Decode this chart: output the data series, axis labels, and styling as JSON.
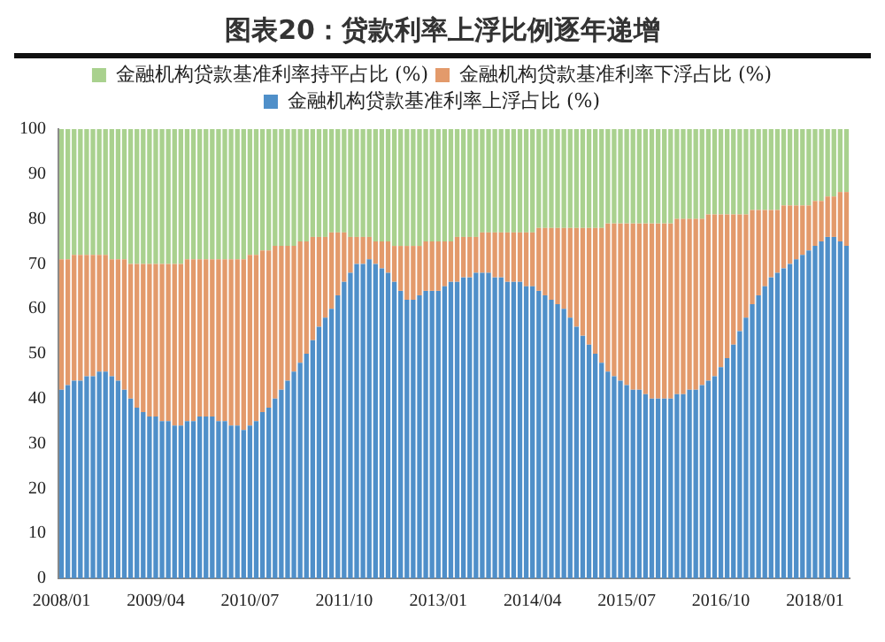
{
  "chart_data": {
    "type": "bar",
    "title": "图表20：贷款利率上浮比例逐年递增",
    "stacked": true,
    "legend": "top",
    "categories": [
      "2008/01",
      null,
      null,
      null,
      null,
      null,
      null,
      null,
      null,
      null,
      null,
      null,
      null,
      null,
      null,
      "2009/04",
      null,
      null,
      null,
      null,
      null,
      null,
      null,
      null,
      null,
      null,
      null,
      null,
      null,
      null,
      "2010/07",
      null,
      null,
      null,
      null,
      null,
      null,
      null,
      null,
      null,
      null,
      null,
      null,
      null,
      null,
      "2011/10",
      null,
      null,
      null,
      null,
      null,
      null,
      null,
      null,
      null,
      null,
      null,
      null,
      null,
      null,
      "2013/01",
      null,
      null,
      null,
      null,
      null,
      null,
      null,
      null,
      null,
      null,
      null,
      null,
      null,
      null,
      "2014/04",
      null,
      null,
      null,
      null,
      null,
      null,
      null,
      null,
      null,
      null,
      null,
      null,
      null,
      null,
      "2015/07",
      null,
      null,
      null,
      null,
      null,
      null,
      null,
      null,
      null,
      null,
      null,
      null,
      null,
      null,
      "2016/10",
      null,
      null,
      null,
      null,
      null,
      null,
      null,
      null,
      null,
      null,
      null,
      null,
      null,
      null,
      "2018/01",
      null,
      null,
      null,
      null,
      null
    ],
    "ylim": [
      0,
      100
    ],
    "yticks": [
      0,
      10,
      20,
      30,
      40,
      50,
      60,
      70,
      80,
      90,
      100
    ],
    "series": [
      {
        "name": "金融机构贷款基准利率上浮占比 (%)",
        "color": "#4f8fc9",
        "values": [
          42,
          43,
          44,
          44,
          45,
          45,
          46,
          46,
          45,
          44,
          42,
          40,
          38,
          37,
          36,
          36,
          35,
          35,
          34,
          34,
          35,
          35,
          36,
          36,
          36,
          35,
          35,
          34,
          34,
          33,
          34,
          35,
          37,
          38,
          40,
          42,
          44,
          46,
          48,
          50,
          53,
          56,
          58,
          60,
          63,
          66,
          68,
          70,
          70,
          71,
          70,
          69,
          68,
          66,
          64,
          62,
          62,
          63,
          64,
          64,
          64,
          65,
          66,
          66,
          67,
          67,
          68,
          68,
          68,
          67,
          67,
          66,
          66,
          66,
          65,
          65,
          64,
          63,
          62,
          61,
          60,
          58,
          56,
          54,
          52,
          50,
          48,
          46,
          45,
          44,
          43,
          42,
          42,
          41,
          40,
          40,
          40,
          40,
          41,
          41,
          42,
          42,
          43,
          44,
          45,
          47,
          49,
          52,
          55,
          58,
          61,
          63,
          65,
          67,
          68,
          69,
          70,
          71,
          72,
          73,
          74,
          75,
          76,
          76,
          75,
          74
        ]
      },
      {
        "name": "金融机构贷款基准利率下浮占比 (%)",
        "color": "#e39a6b",
        "values": [
          29,
          28,
          28,
          28,
          27,
          27,
          26,
          26,
          26,
          27,
          29,
          30,
          32,
          33,
          34,
          34,
          35,
          35,
          36,
          36,
          36,
          36,
          35,
          35,
          35,
          36,
          36,
          37,
          37,
          38,
          38,
          37,
          36,
          35,
          34,
          32,
          30,
          28,
          27,
          25,
          23,
          20,
          18,
          17,
          14,
          11,
          8,
          6,
          6,
          5,
          5,
          6,
          7,
          8,
          10,
          12,
          12,
          11,
          11,
          11,
          11,
          10,
          9,
          10,
          9,
          9,
          8,
          9,
          9,
          10,
          10,
          11,
          11,
          11,
          12,
          12,
          14,
          15,
          16,
          17,
          18,
          20,
          22,
          24,
          26,
          28,
          30,
          33,
          34,
          35,
          36,
          37,
          37,
          38,
          39,
          39,
          39,
          39,
          39,
          39,
          38,
          38,
          37,
          37,
          36,
          34,
          32,
          29,
          26,
          23,
          21,
          19,
          17,
          15,
          14,
          14,
          13,
          12,
          11,
          10,
          10,
          9,
          9,
          9,
          11,
          12
        ]
      },
      {
        "name": "金融机构贷款基准利率持平占比 (%)",
        "color": "#a9d18e",
        "values": [
          29,
          29,
          28,
          28,
          28,
          28,
          28,
          28,
          29,
          29,
          29,
          30,
          30,
          30,
          30,
          30,
          30,
          30,
          30,
          30,
          29,
          29,
          29,
          29,
          29,
          29,
          29,
          29,
          29,
          29,
          28,
          28,
          27,
          27,
          26,
          26,
          26,
          26,
          25,
          25,
          24,
          24,
          24,
          23,
          23,
          23,
          24,
          24,
          24,
          24,
          25,
          25,
          25,
          26,
          26,
          26,
          26,
          26,
          25,
          25,
          25,
          25,
          25,
          24,
          24,
          24,
          24,
          23,
          23,
          23,
          23,
          23,
          23,
          23,
          23,
          23,
          22,
          22,
          22,
          22,
          22,
          22,
          22,
          22,
          22,
          22,
          22,
          21,
          21,
          21,
          21,
          21,
          21,
          21,
          21,
          21,
          21,
          21,
          20,
          20,
          20,
          20,
          20,
          19,
          19,
          19,
          19,
          19,
          19,
          19,
          18,
          18,
          18,
          18,
          18,
          17,
          17,
          17,
          17,
          17,
          16,
          16,
          15,
          15,
          14,
          14
        ]
      }
    ]
  }
}
